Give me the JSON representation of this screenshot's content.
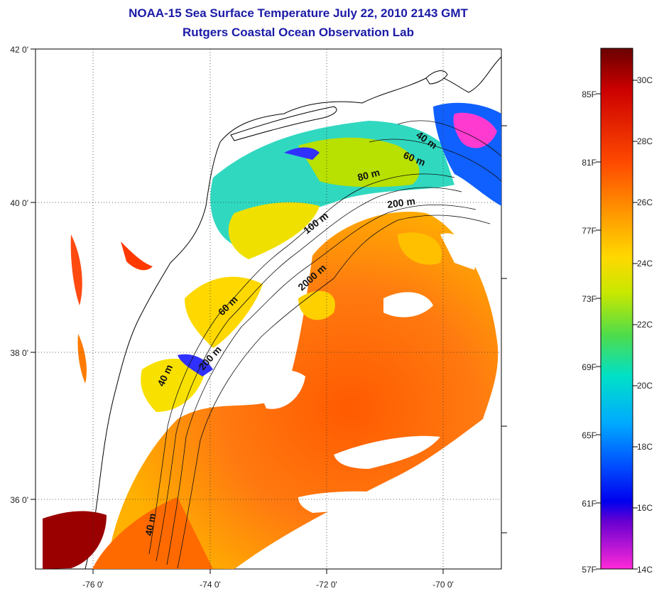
{
  "header": {
    "title_line1": "NOAA-15 Sea Surface Temperature July 22, 2010 2143 GMT",
    "title_line2": "Rutgers Coastal Ocean Observation Lab"
  },
  "map": {
    "lon_ticks": [
      "-76 0'",
      "-74 0'",
      "-72 0'",
      "-70 0'"
    ],
    "lat_ticks": [
      "42 0'",
      "40 0'",
      "38 0'",
      "36 0'"
    ],
    "grid": "dotted",
    "contour_labels": [
      "40 m",
      "60 m",
      "80 m",
      "200 m",
      "100 m",
      "2000 m",
      "60 m",
      "200 m",
      "40 m",
      "40 m"
    ]
  },
  "colorbar": {
    "fahrenheit_labels": [
      "85F",
      "81F",
      "77F",
      "73F",
      "69F",
      "65F",
      "61F",
      "57F"
    ],
    "celsius_labels": [
      "30C",
      "28C",
      "26C",
      "24C",
      "22C",
      "20C",
      "18C",
      "16C",
      "14C"
    ],
    "colors": [
      "#7a0000",
      "#c80000",
      "#ff2a00",
      "#ff7a00",
      "#ffb000",
      "#f5e600",
      "#a6e000",
      "#3ccf4e",
      "#00d8c8",
      "#00a8ff",
      "#0050ff",
      "#0000e6",
      "#7a00d6",
      "#ff2ad6"
    ]
  },
  "colors": {
    "title": "#1a1aa6",
    "land": "#ffffff",
    "coast": "#000000"
  }
}
